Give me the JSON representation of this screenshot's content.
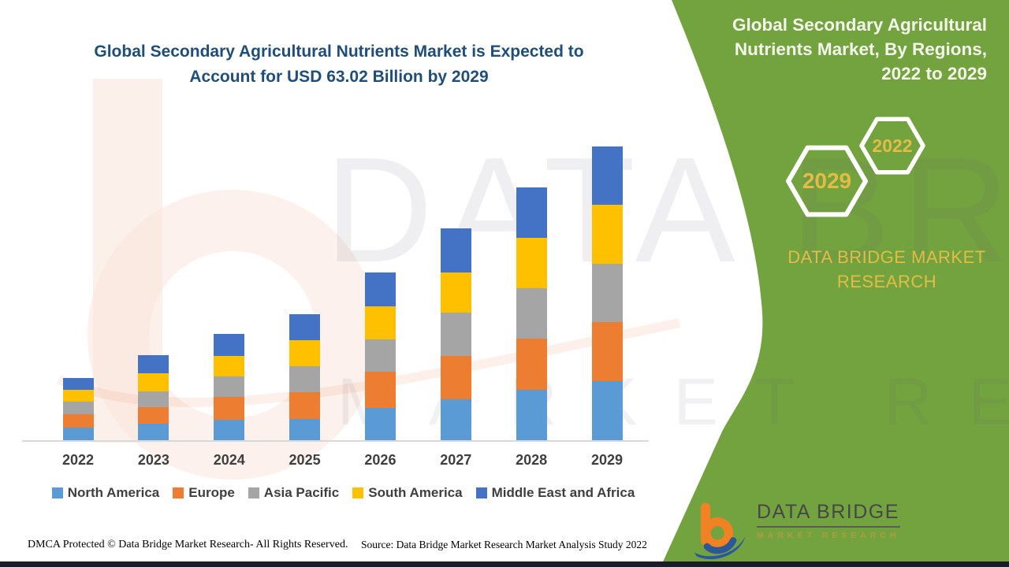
{
  "header": {
    "title_line1": "Global Secondary Agricultural Nutrients Market is Expected to",
    "title_line2": "Account for USD 63.02 Billion by 2029"
  },
  "side_panel": {
    "title_line1": "Global Secondary Agricultural",
    "title_line2": "Nutrients Market, By Regions,",
    "title_line3": "2022 to 2029",
    "hexagon_back_label": "2022",
    "hexagon_front_label": "2029",
    "brand_line1": "DATA BRIDGE MARKET",
    "brand_line2": "RESEARCH",
    "panel_color": "#73a33f",
    "accent_gold": "#e3bc45",
    "hex_border_color": "#ffffff"
  },
  "watermark": {
    "line1": "DATA BRIDGE",
    "line2": "MARKET RESEARCH"
  },
  "logo": {
    "name": "DATA BRIDGE",
    "sub": "MARKET RESEARCH"
  },
  "footer": {
    "dmca": "DMCA Protected © Data Bridge Market Research- All Rights Reserved.",
    "source": "Source: Data Bridge Market Research Market Analysis Study 2022"
  },
  "chart_data": {
    "type": "bar",
    "stacked": true,
    "unit": "USD Billion",
    "title": "Global Secondary Agricultural Nutrients Market, By Regions, 2022 to 2029",
    "categories": [
      "2022",
      "2023",
      "2024",
      "2025",
      "2026",
      "2027",
      "2028",
      "2029"
    ],
    "series": [
      {
        "name": "North America",
        "color": "#5b9bd5",
        "values": [
          2.7,
          3.5,
          4.4,
          4.6,
          7.0,
          8.8,
          10.8,
          12.6
        ]
      },
      {
        "name": "Europe",
        "color": "#ed7d31",
        "values": [
          2.9,
          3.5,
          4.8,
          5.7,
          7.6,
          9.3,
          11.0,
          12.6
        ]
      },
      {
        "name": "Asia Pacific",
        "color": "#a5a5a5",
        "values": [
          2.6,
          3.5,
          4.4,
          5.6,
          7.0,
          9.2,
          10.8,
          12.6
        ]
      },
      {
        "name": "South America",
        "color": "#ffc000",
        "values": [
          2.6,
          3.8,
          4.4,
          5.6,
          7.0,
          8.6,
          10.7,
          12.6
        ]
      },
      {
        "name": "Middle East and Africa",
        "color": "#4472c4",
        "values": [
          2.5,
          3.9,
          4.7,
          5.5,
          7.4,
          9.4,
          10.8,
          12.5
        ]
      }
    ],
    "totals_estimated": [
      13.3,
      18.2,
      22.7,
      27.0,
      36.0,
      45.3,
      54.1,
      63.02
    ],
    "ylim": [
      0,
      63.02
    ],
    "xlabel": "",
    "ylabel": "",
    "gridlines": false,
    "y_axis_visible": false,
    "legend_position": "bottom",
    "annotation": "USD 63.02 Billion by 2029"
  }
}
